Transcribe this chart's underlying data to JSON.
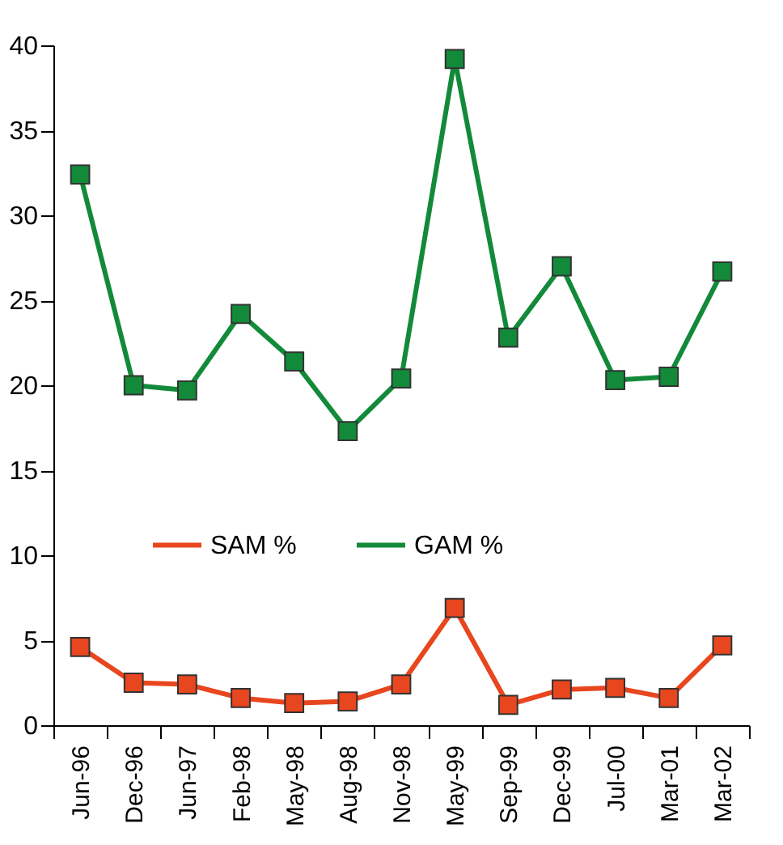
{
  "chart_data": {
    "type": "line",
    "categories": [
      "Jun-96",
      "Dec-96",
      "Jun-97",
      "Feb-98",
      "May-98",
      "Aug-98",
      "Nov-98",
      "May-99",
      "Sep-99",
      "Dec-99",
      "Jul-00",
      "Mar-01",
      "Mar-02"
    ],
    "series": [
      {
        "name": "SAM %",
        "color": "#e8461e",
        "values": [
          4.6,
          2.5,
          2.4,
          1.6,
          1.3,
          1.4,
          2.4,
          6.9,
          1.2,
          2.1,
          2.2,
          1.6,
          4.7
        ]
      },
      {
        "name": "GAM %",
        "color": "#128a3a",
        "values": [
          32.4,
          20.0,
          19.7,
          24.2,
          21.4,
          17.3,
          20.4,
          39.2,
          22.8,
          27.0,
          20.3,
          20.5,
          26.7
        ]
      }
    ],
    "ylim": [
      0,
      40
    ],
    "yticks": [
      0,
      5,
      10,
      15,
      20,
      25,
      30,
      35,
      40
    ],
    "grid": false,
    "legend": "left",
    "marker": "square",
    "line_style": "solid"
  }
}
